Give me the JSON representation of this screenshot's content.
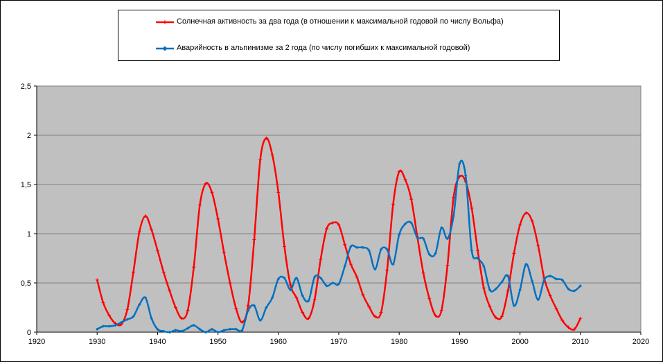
{
  "chart_data": {
    "type": "line",
    "title": "",
    "xlabel": "",
    "ylabel": "",
    "xlim": [
      1920,
      2020
    ],
    "ylim": [
      0,
      2.5
    ],
    "x_ticks": [
      "1920",
      "1930",
      "1940",
      "1950",
      "1960",
      "1970",
      "1980",
      "1990",
      "2000",
      "2010",
      "2020"
    ],
    "y_ticks": [
      "0",
      "0,5",
      "1",
      "1,5",
      "2",
      "2,5"
    ],
    "grid": "horizontal",
    "legend_position": "top",
    "plot_background": "#c0c0c0",
    "series": [
      {
        "name": "Солнечная активность за два года (в отношении к максимальной годовой по числу Вольфа)",
        "color": "#ff0000",
        "marker": "plus",
        "x": [
          1930,
          1931,
          1932,
          1933,
          1934,
          1935,
          1936,
          1937,
          1938,
          1939,
          1940,
          1941,
          1942,
          1943,
          1944,
          1945,
          1946,
          1947,
          1948,
          1949,
          1950,
          1951,
          1952,
          1953,
          1954,
          1955,
          1956,
          1957,
          1958,
          1959,
          1960,
          1961,
          1962,
          1963,
          1964,
          1965,
          1966,
          1967,
          1968,
          1969,
          1970,
          1971,
          1972,
          1973,
          1974,
          1975,
          1976,
          1977,
          1978,
          1979,
          1980,
          1981,
          1982,
          1983,
          1984,
          1985,
          1986,
          1987,
          1988,
          1989,
          1990,
          1991,
          1992,
          1993,
          1994,
          1995,
          1996,
          1997,
          1998,
          1999,
          2000,
          2001,
          2002,
          2003,
          2004,
          2005,
          2006,
          2007,
          2008,
          2009,
          2010
        ],
        "y": [
          0.53,
          0.3,
          0.17,
          0.09,
          0.08,
          0.23,
          0.61,
          1.02,
          1.18,
          1.04,
          0.83,
          0.61,
          0.42,
          0.25,
          0.14,
          0.22,
          0.66,
          1.29,
          1.51,
          1.42,
          1.15,
          0.81,
          0.5,
          0.24,
          0.1,
          0.27,
          0.94,
          1.75,
          1.97,
          1.8,
          1.42,
          0.87,
          0.48,
          0.35,
          0.2,
          0.14,
          0.33,
          0.74,
          1.05,
          1.11,
          1.09,
          0.89,
          0.69,
          0.56,
          0.38,
          0.26,
          0.16,
          0.2,
          0.63,
          1.3,
          1.63,
          1.55,
          1.35,
          0.97,
          0.6,
          0.34,
          0.17,
          0.22,
          0.68,
          1.37,
          1.58,
          1.53,
          1.26,
          0.83,
          0.45,
          0.26,
          0.15,
          0.16,
          0.42,
          0.8,
          1.09,
          1.21,
          1.13,
          0.88,
          0.55,
          0.37,
          0.24,
          0.12,
          0.05,
          0.03,
          0.14
        ]
      },
      {
        "name": "Аварийность в альпинизме  за 2 года (по числу погибших  к максимальной годовой)",
        "color": "#0070c0",
        "marker": "diamond",
        "x": [
          1930,
          1931,
          1932,
          1933,
          1934,
          1935,
          1936,
          1937,
          1938,
          1939,
          1940,
          1941,
          1942,
          1943,
          1944,
          1945,
          1946,
          1947,
          1948,
          1949,
          1950,
          1951,
          1952,
          1953,
          1954,
          1955,
          1956,
          1957,
          1958,
          1959,
          1960,
          1961,
          1962,
          1963,
          1964,
          1965,
          1966,
          1967,
          1968,
          1969,
          1970,
          1971,
          1972,
          1973,
          1974,
          1975,
          1976,
          1977,
          1978,
          1979,
          1980,
          1981,
          1982,
          1983,
          1984,
          1985,
          1986,
          1987,
          1988,
          1989,
          1990,
          1991,
          1992,
          1993,
          1994,
          1995,
          1996,
          1997,
          1998,
          1999,
          2000,
          2001,
          2002,
          2003,
          2004,
          2005,
          2006,
          2007,
          2008,
          2009,
          2010
        ],
        "y": [
          0.03,
          0.06,
          0.06,
          0.07,
          0.1,
          0.13,
          0.16,
          0.28,
          0.35,
          0.14,
          0.03,
          0.01,
          0.0,
          0.02,
          0.01,
          0.04,
          0.07,
          0.03,
          0.0,
          0.03,
          0.0,
          0.02,
          0.03,
          0.03,
          0.02,
          0.22,
          0.27,
          0.12,
          0.25,
          0.35,
          0.54,
          0.55,
          0.43,
          0.55,
          0.37,
          0.32,
          0.56,
          0.55,
          0.47,
          0.5,
          0.49,
          0.67,
          0.87,
          0.86,
          0.86,
          0.83,
          0.64,
          0.84,
          0.84,
          0.69,
          0.99,
          1.1,
          1.11,
          0.96,
          0.95,
          0.79,
          0.8,
          1.06,
          0.95,
          1.18,
          1.71,
          1.59,
          0.83,
          0.75,
          0.67,
          0.43,
          0.44,
          0.51,
          0.57,
          0.27,
          0.43,
          0.69,
          0.52,
          0.33,
          0.53,
          0.57,
          0.54,
          0.53,
          0.44,
          0.42,
          0.47
        ]
      }
    ]
  }
}
